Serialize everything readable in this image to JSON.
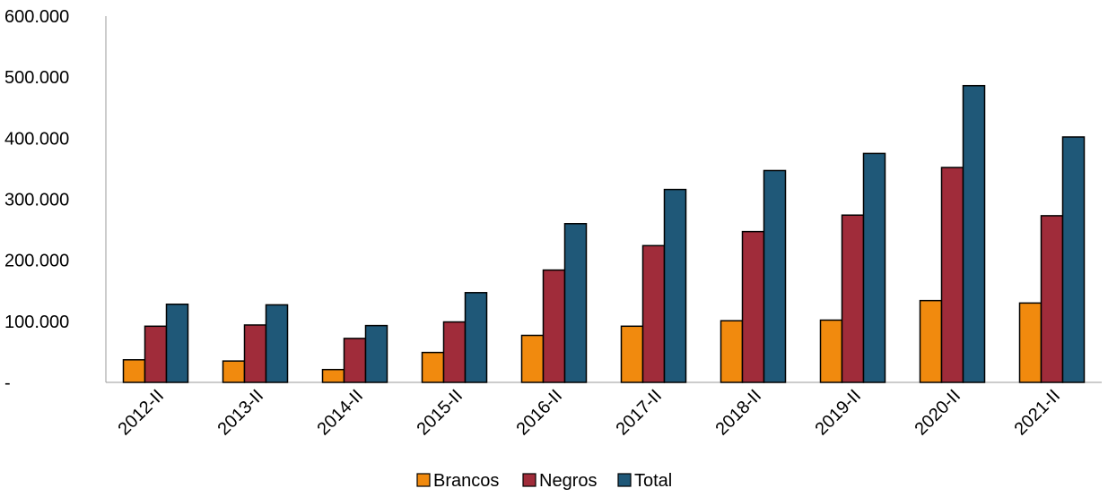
{
  "chart_data": {
    "type": "bar",
    "categories": [
      "2012-II",
      "2013-II",
      "2014-II",
      "2015-II",
      "2016-II",
      "2017-II",
      "2018-II",
      "2019-II",
      "2020-II",
      "2021-II"
    ],
    "series": [
      {
        "name": "Brancos",
        "color": "#f18a0e",
        "values": [
          37000,
          35000,
          21000,
          49000,
          77000,
          92000,
          101000,
          102000,
          134000,
          130000
        ]
      },
      {
        "name": "Negros",
        "color": "#a02c3a",
        "values": [
          92000,
          94000,
          72000,
          99000,
          184000,
          224000,
          247000,
          274000,
          352000,
          273000
        ]
      },
      {
        "name": "Total",
        "color": "#1f5878",
        "values": [
          128000,
          127000,
          93000,
          147000,
          260000,
          316000,
          347000,
          375000,
          486000,
          402000
        ]
      }
    ],
    "ylim": [
      0,
      600000
    ],
    "yticks": [
      0,
      100000,
      200000,
      300000,
      400000,
      500000,
      600000
    ],
    "ytick_labels": [
      "-",
      "100.000",
      "200.000",
      "300.000",
      "400.000",
      "500.000",
      "600.000"
    ],
    "title": "",
    "xlabel": "",
    "ylabel": "",
    "legend_position": "bottom",
    "grid": false
  }
}
